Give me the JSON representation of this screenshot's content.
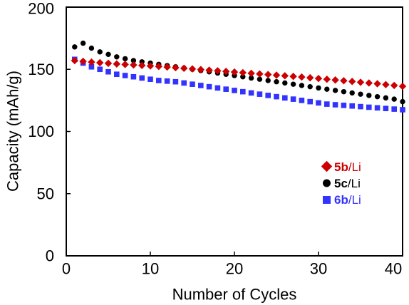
{
  "chart_data": {
    "type": "scatter",
    "xlabel": "Number of Cycles",
    "ylabel": "Capacity (mAh/g)",
    "xlim": [
      0,
      40
    ],
    "ylim": [
      0,
      200
    ],
    "x_ticks": [
      "0",
      "10",
      "20",
      "30",
      "40"
    ],
    "y_ticks": [
      "0",
      "50",
      "100",
      "150",
      "200"
    ],
    "grid": false,
    "legend_position": "right, lower-middle",
    "series": [
      {
        "name": "5b/Li",
        "label_bold": "5b",
        "label_rest": "/Li",
        "marker": "diamond",
        "color": "#cc0000",
        "x": [
          1,
          2,
          3,
          4,
          5,
          6,
          7,
          8,
          9,
          10,
          11,
          12,
          13,
          14,
          15,
          16,
          17,
          18,
          19,
          20,
          21,
          22,
          23,
          24,
          25,
          26,
          27,
          28,
          29,
          30,
          31,
          32,
          33,
          34,
          35,
          36,
          37,
          38,
          39,
          40
        ],
        "y": [
          157,
          156.4,
          155.8,
          155.3,
          154.8,
          154.3,
          153.9,
          153.5,
          153.1,
          152.7,
          152.3,
          151.8,
          151.3,
          150.8,
          150.3,
          149.8,
          149.3,
          148.8,
          148.3,
          147.8,
          147.3,
          146.8,
          146.3,
          145.8,
          145.3,
          144.8,
          144.3,
          143.8,
          143.2,
          142.6,
          142,
          141.4,
          140.8,
          140.2,
          139.6,
          139,
          138.4,
          137.7,
          137,
          136.3
        ]
      },
      {
        "name": "5c/Li",
        "label_bold": "5c",
        "label_rest": "/Li",
        "marker": "circle",
        "color": "#000000",
        "x": [
          1,
          2,
          3,
          4,
          5,
          6,
          7,
          8,
          9,
          10,
          11,
          12,
          13,
          14,
          15,
          16,
          17,
          18,
          19,
          20,
          21,
          22,
          23,
          24,
          25,
          26,
          27,
          28,
          29,
          30,
          31,
          32,
          33,
          34,
          35,
          36,
          37,
          38,
          39,
          40
        ],
        "y": [
          168,
          171,
          167,
          164,
          162,
          160,
          158.5,
          157,
          156,
          155,
          154,
          153,
          152,
          151,
          150,
          149,
          148,
          147,
          146,
          145,
          144,
          143,
          142,
          141,
          140,
          139,
          138,
          137,
          136,
          135,
          134,
          133,
          132,
          131,
          130,
          129,
          128,
          127,
          126,
          124
        ]
      },
      {
        "name": "6b/Li",
        "label_bold": "6b",
        "label_rest": "/Li",
        "marker": "square",
        "color": "#3333ff",
        "x": [
          1,
          2,
          3,
          4,
          5,
          6,
          7,
          8,
          9,
          10,
          11,
          12,
          13,
          14,
          15,
          16,
          17,
          18,
          19,
          20,
          21,
          22,
          23,
          24,
          25,
          26,
          27,
          28,
          29,
          30,
          31,
          32,
          33,
          34,
          35,
          36,
          37,
          38,
          39,
          40
        ],
        "y": [
          158,
          155,
          152,
          150,
          148,
          146,
          145,
          144,
          143,
          142,
          141,
          140.5,
          140,
          139,
          138,
          137,
          136,
          135,
          134,
          133,
          132,
          131,
          130,
          129,
          128,
          127,
          126,
          125,
          124,
          123,
          122,
          121.5,
          121,
          120.5,
          120,
          119.5,
          119,
          118.5,
          118,
          117.5
        ]
      }
    ]
  }
}
